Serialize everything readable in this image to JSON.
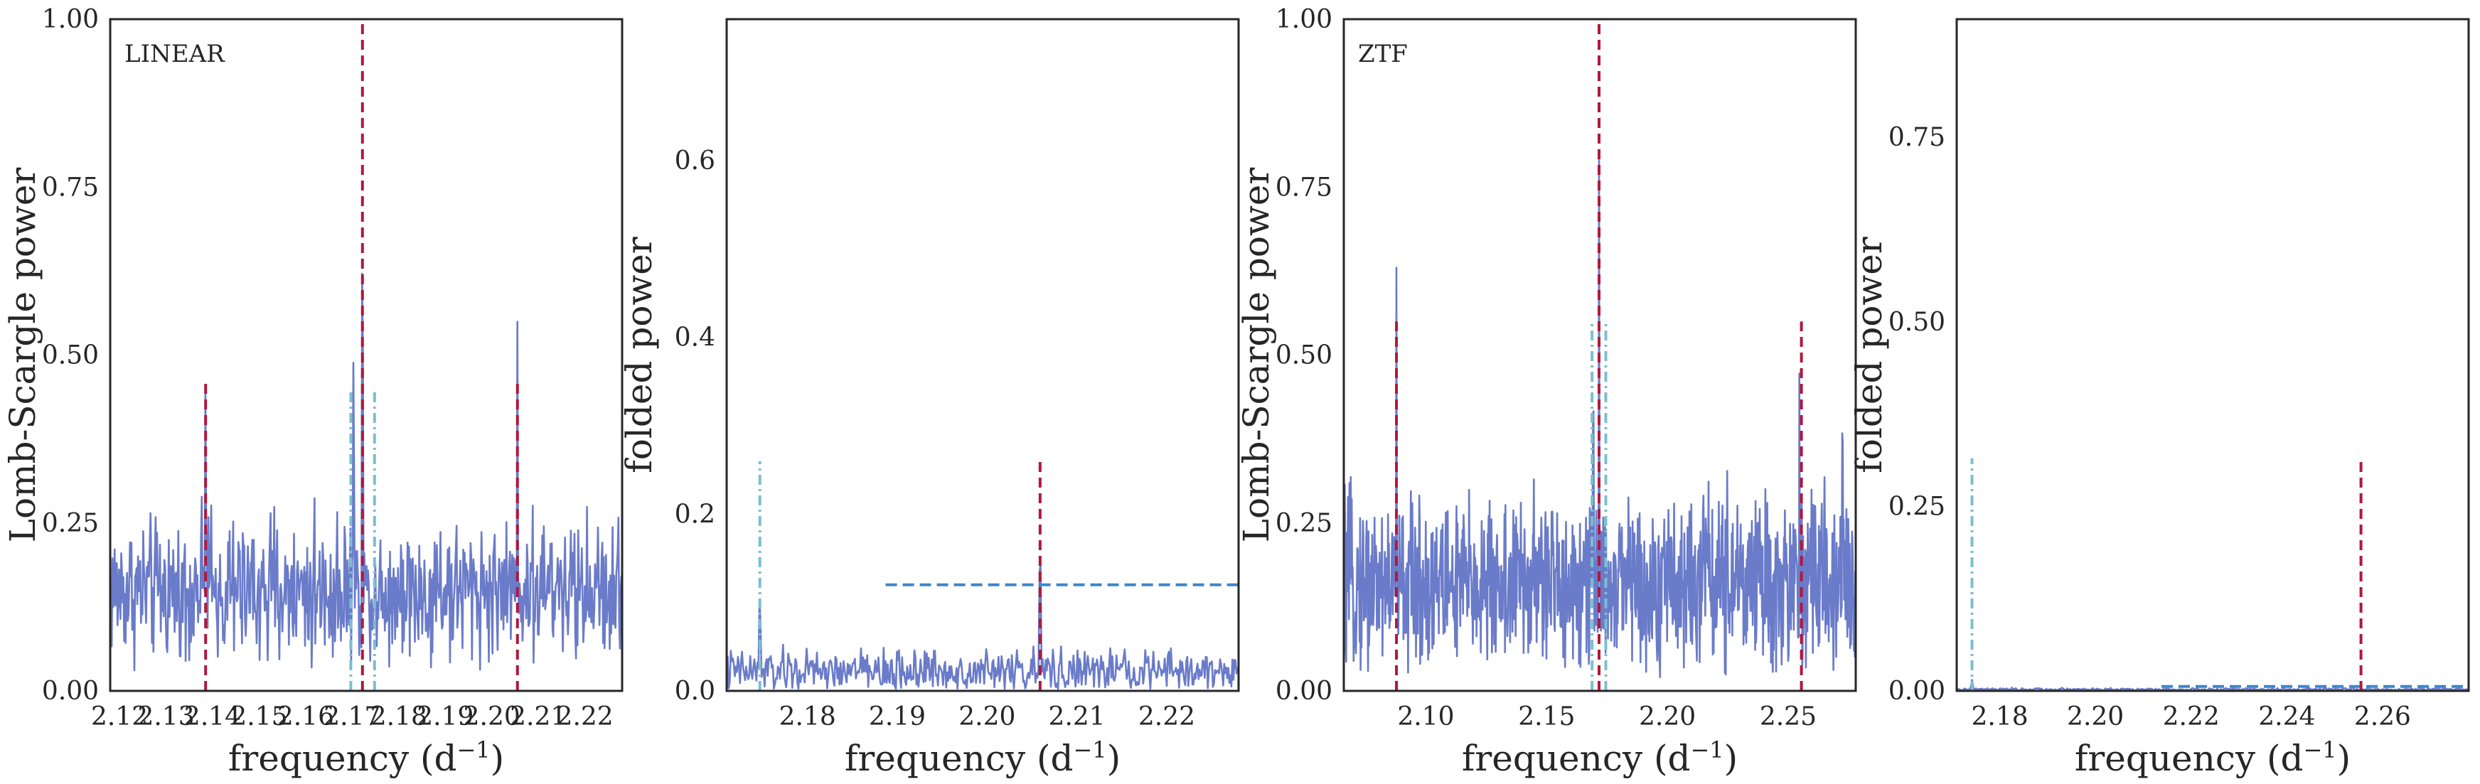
{
  "colors": {
    "signal": "#6a7bc9",
    "true_frequency": "#b0183c",
    "alias": "#7bbfcf",
    "threshold": "#3d86c8"
  },
  "chart_data": [
    {
      "type": "line",
      "panel_label": "LINEAR",
      "xlabel_main": "frequency (d",
      "xlabel_sup": "−1",
      "xlabel_end": ")",
      "ylabel": "Lomb-Scargle power",
      "xlim": [
        2.118,
        2.228
      ],
      "ylim": [
        0,
        1.0
      ],
      "xticks": [
        2.12,
        2.13,
        2.14,
        2.15,
        2.16,
        2.17,
        2.18,
        2.19,
        2.2,
        2.21,
        2.22
      ],
      "xtick_labels": [
        "2.12",
        "2.13",
        "2.14",
        "2.15",
        "2.16",
        "2.17",
        "2.18",
        "2.19",
        "2.20",
        "2.21",
        "2.22"
      ],
      "yticks": [
        0,
        0.25,
        0.5,
        0.75,
        1.0
      ],
      "ytick_labels": [
        "0.00",
        "0.25",
        "0.50",
        "0.75",
        "1.00"
      ],
      "grid": false,
      "series": [
        {
          "style": "noise",
          "x_range": [
            2.118,
            2.228
          ],
          "points": 700,
          "baseline": 0.15,
          "spread": 0.085,
          "min": 0.03,
          "peaks": [
            [
              2.1385,
              0.49
            ],
            [
              2.1703,
              0.565
            ],
            [
              2.1722,
              0.77
            ],
            [
              2.2055,
              0.55
            ]
          ]
        }
      ],
      "vlines": [
        {
          "x": 2.1385,
          "y0": 0,
          "y1": 0.46,
          "style": "red-dash"
        },
        {
          "x": 2.1722,
          "y0": 0,
          "y1": 1.0,
          "style": "red-dash"
        },
        {
          "x": 2.2055,
          "y0": 0,
          "y1": 0.46,
          "style": "red-dash"
        },
        {
          "x": 2.1697,
          "y0": 0,
          "y1": 0.45,
          "style": "cyan-dashdot"
        },
        {
          "x": 2.1748,
          "y0": 0,
          "y1": 0.45,
          "style": "cyan-dashdot"
        }
      ],
      "hlines": []
    },
    {
      "type": "line",
      "panel_label": "",
      "xlabel_main": "frequency (d",
      "xlabel_sup": "−1",
      "xlabel_end": ")",
      "ylabel": "folded power",
      "xlim": [
        2.171,
        2.228
      ],
      "ylim": [
        0,
        0.76
      ],
      "xticks": [
        2.18,
        2.19,
        2.2,
        2.21,
        2.22
      ],
      "xtick_labels": [
        "2.18",
        "2.19",
        "2.20",
        "2.21",
        "2.22"
      ],
      "yticks": [
        0,
        0.2,
        0.4,
        0.6
      ],
      "ytick_labels": [
        "0.0",
        "0.2",
        "0.4",
        "0.6"
      ],
      "grid": false,
      "series": [
        {
          "style": "noise",
          "x_range": [
            2.171,
            2.228
          ],
          "points": 500,
          "baseline": 0.022,
          "spread": 0.02,
          "min": 0.002,
          "peaks": [
            [
              2.1747,
              0.125
            ],
            [
              2.2059,
              0.19
            ]
          ]
        }
      ],
      "vlines": [
        {
          "x": 2.2059,
          "y0": 0,
          "y1": 0.26,
          "style": "red-dash"
        },
        {
          "x": 2.1747,
          "y0": 0,
          "y1": 0.26,
          "style": "cyan-dashdot"
        }
      ],
      "hlines": [
        {
          "y": 0.12,
          "x0": 2.1887,
          "x1": 2.228,
          "style": "blue-dash"
        }
      ]
    },
    {
      "type": "line",
      "panel_label": "ZTF",
      "xlabel_main": "frequency (d",
      "xlabel_sup": "−1",
      "xlabel_end": ")",
      "ylabel": "Lomb-Scargle power",
      "xlim": [
        2.066,
        2.278
      ],
      "ylim": [
        0,
        1.0
      ],
      "xticks": [
        2.1,
        2.15,
        2.2,
        2.25
      ],
      "xtick_labels": [
        "2.10",
        "2.15",
        "2.20",
        "2.25"
      ],
      "yticks": [
        0,
        0.25,
        0.5,
        0.75,
        1.0
      ],
      "ytick_labels": [
        "0.00",
        "0.25",
        "0.50",
        "0.75",
        "1.00"
      ],
      "grid": false,
      "series": [
        {
          "style": "noise",
          "x_range": [
            2.066,
            2.278
          ],
          "points": 1100,
          "baseline": 0.16,
          "spread": 0.1,
          "min": 0.02,
          "peaks": [
            [
              2.0878,
              0.63
            ],
            [
              2.1693,
              0.565
            ],
            [
              2.1717,
              0.8
            ],
            [
              2.2547,
              0.5
            ],
            [
              2.2725,
              0.515
            ]
          ]
        }
      ],
      "vlines": [
        {
          "x": 2.0878,
          "y0": 0,
          "y1": 0.55,
          "style": "red-dash"
        },
        {
          "x": 2.1717,
          "y0": 0,
          "y1": 1.0,
          "style": "red-dash"
        },
        {
          "x": 2.2555,
          "y0": 0,
          "y1": 0.55,
          "style": "red-dash"
        },
        {
          "x": 2.1688,
          "y0": 0,
          "y1": 0.55,
          "style": "cyan-dashdot"
        },
        {
          "x": 2.1745,
          "y0": 0,
          "y1": 0.55,
          "style": "cyan-dashdot"
        }
      ],
      "hlines": []
    },
    {
      "type": "line",
      "panel_label": "",
      "xlabel_main": "frequency (d",
      "xlabel_sup": "−1",
      "xlabel_end": ")",
      "ylabel": "folded power",
      "xlim": [
        2.171,
        2.278
      ],
      "ylim": [
        0,
        0.91
      ],
      "xticks": [
        2.18,
        2.2,
        2.22,
        2.24,
        2.26
      ],
      "xtick_labels": [
        "2.18",
        "2.20",
        "2.22",
        "2.24",
        "2.26"
      ],
      "yticks": [
        0,
        0.25,
        0.5,
        0.75
      ],
      "ytick_labels": [
        "0.00",
        "0.25",
        "0.50",
        "0.75"
      ],
      "grid": false,
      "series": [
        {
          "style": "noise",
          "x_range": [
            2.171,
            2.278
          ],
          "points": 400,
          "baseline": 0.002,
          "spread": 0.0015,
          "min": 0.0,
          "peaks": [
            [
              2.1742,
              0.015
            ]
          ]
        }
      ],
      "vlines": [
        {
          "x": 2.2555,
          "y0": 0,
          "y1": 0.315,
          "style": "red-dash"
        },
        {
          "x": 2.1742,
          "y0": 0,
          "y1": 0.315,
          "style": "cyan-dashdot"
        }
      ],
      "hlines": [
        {
          "y": 0.006,
          "x0": 2.2138,
          "x1": 2.278,
          "style": "blue-dash"
        }
      ]
    }
  ]
}
